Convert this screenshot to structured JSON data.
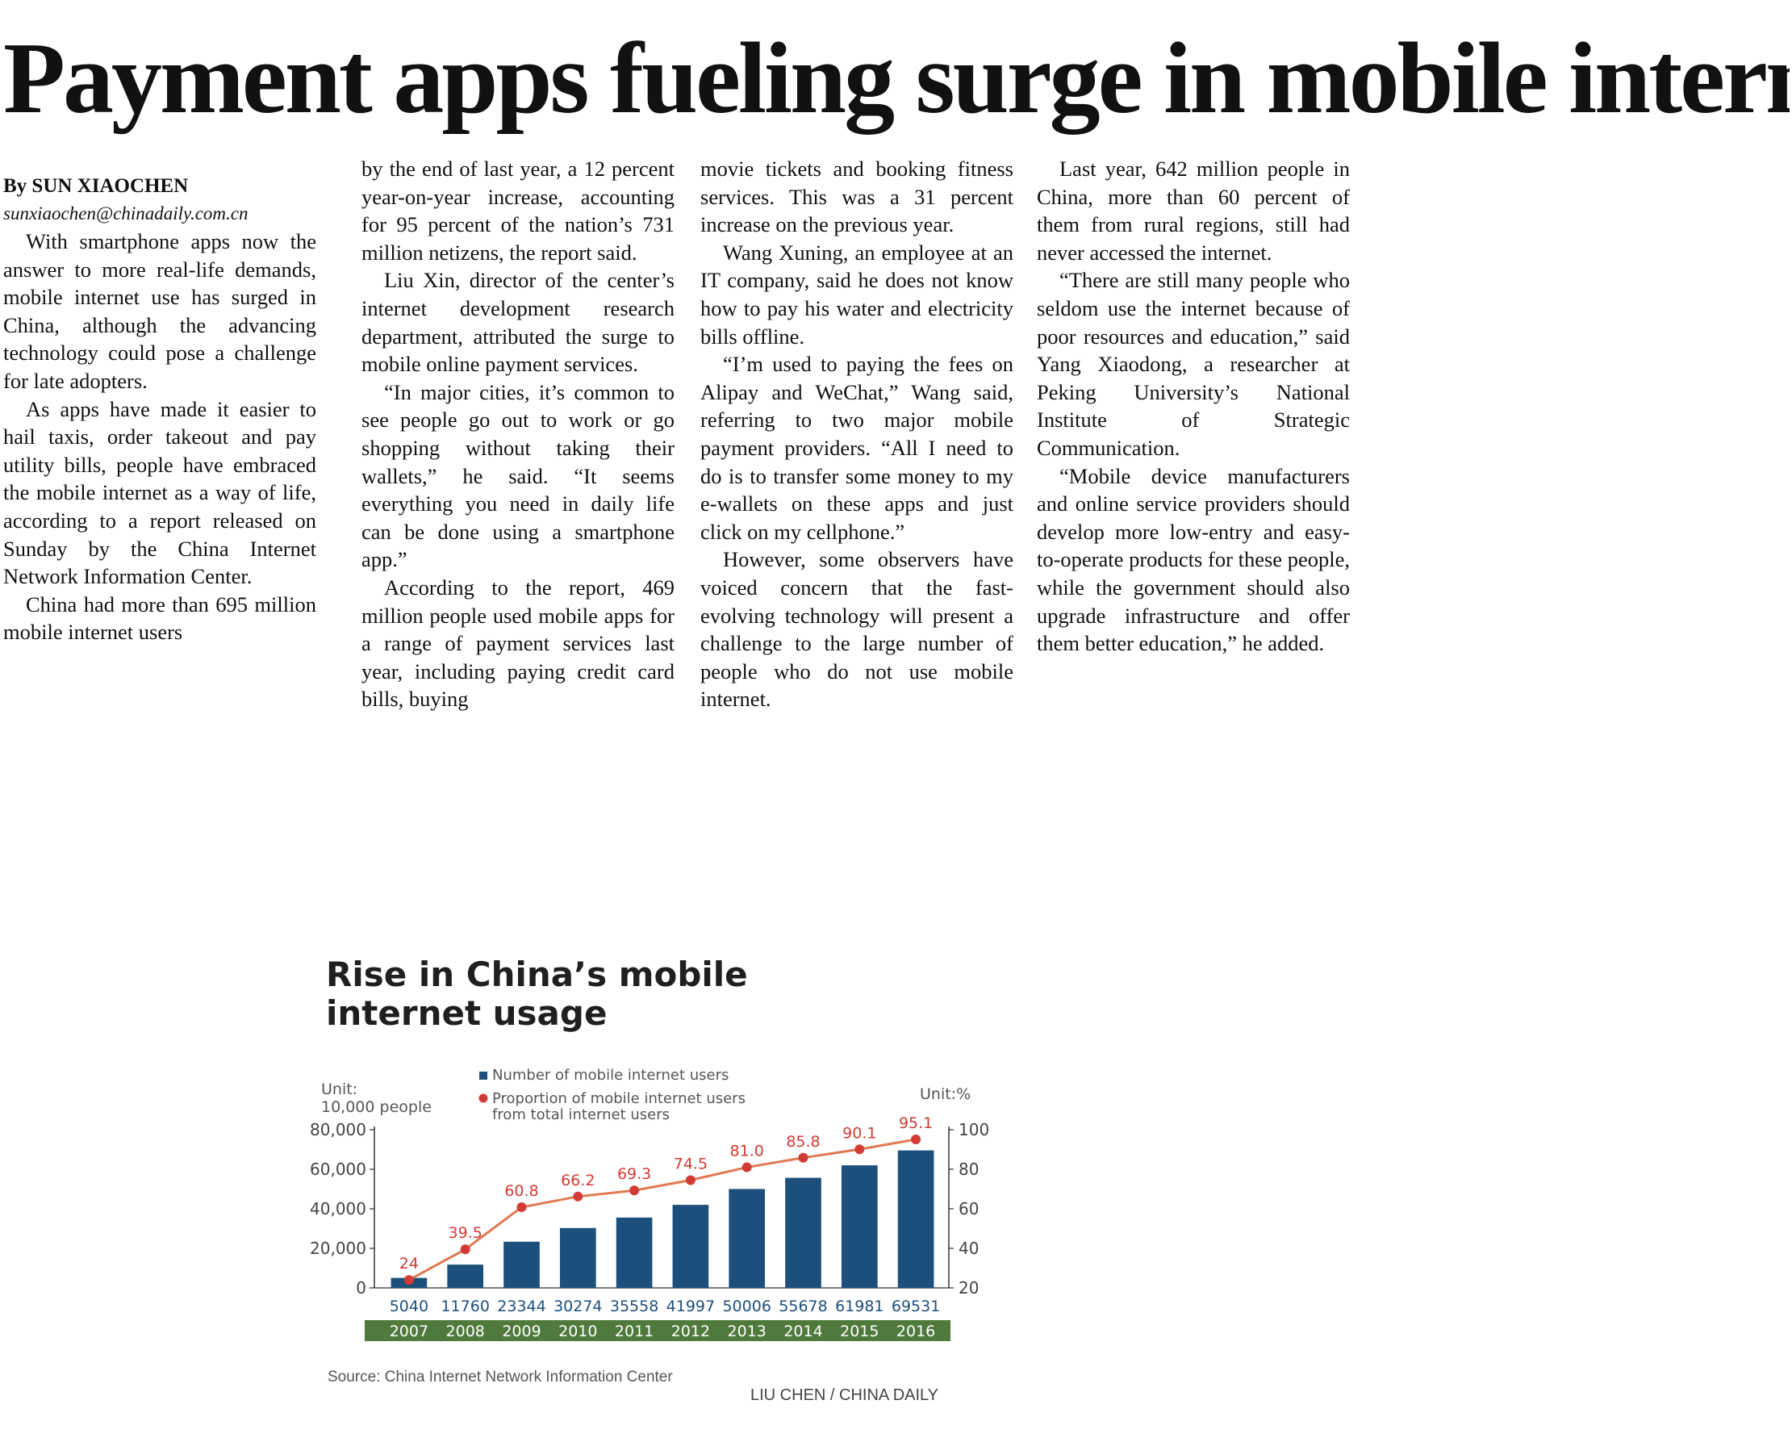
{
  "article": {
    "headline": "Payment apps fueling surge in mobile internet",
    "byline": "By SUN XIAOCHEN",
    "email": "sunxiaochen@chinadaily.com.cn",
    "col1": [
      "With smartphone apps now the answer to more real-life demands, mobile internet use has surged in China, although the advancing technology could pose a challenge for late adopters.",
      "As apps have made it easier to hail taxis, order takeout and pay utility bills, people have embraced the mobile internet as a way of life, according to a report released on Sunday by the China Internet Network Information Center.",
      "China had more than 695 million mobile internet users"
    ],
    "col2": [
      "by the end of last year, a 12 percent year-on-year increase, accounting for 95 percent of the nation’s 731 million netizens, the report said.",
      "Liu Xin, director of the center’s internet development research department, attributed the surge to mobile online payment services.",
      "“In major cities, it’s common to see people go out to work or go shopping without taking their wallets,” he said. “It seems everything you need in daily life can be done using a smartphone app.”",
      "According to the report, 469 million people used mobile apps for a range of payment services last year, including paying credit card bills, buying"
    ],
    "col3": [
      "movie tickets and booking fitness services. This was a 31 percent increase on the previous year.",
      "Wang Xuning, an employee at an IT company, said he does not know how to pay his water and electricity bills offline.",
      "“I’m used to paying the fees on Alipay and WeChat,” Wang said, referring to two major mobile payment providers. “All I need to do is to transfer some money to my e-wallets on these apps and just click on my cellphone.”",
      "However, some observers have voiced concern that the fast-evolving technology will present a challenge to the large number of people who do not use mobile internet."
    ],
    "col4": [
      "Last year, 642 million people in China, more than 60 percent of them from rural regions, still had never accessed the internet.",
      "“There are still many people who seldom use the internet because of poor resources and education,” said Yang Xiaodong, a researcher at Peking University’s National Institute of Strategic Communication.",
      "“Mobile device manufacturers and online service providers should develop more low-entry and easy-to-operate products for these people, while the government should also upgrade infrastructure and offer them better education,” he added."
    ]
  },
  "chart_data": {
    "type": "bar",
    "title": "Rise in China’s mobile internet usage",
    "categories": [
      "2007",
      "2008",
      "2009",
      "2010",
      "2011",
      "2012",
      "2013",
      "2014",
      "2015",
      "2016"
    ],
    "series": [
      {
        "name": "Number of mobile internet users",
        "type": "bar",
        "values": [
          5040,
          11760,
          23344,
          30274,
          35558,
          41997,
          50006,
          55678,
          61981,
          69531
        ],
        "color": "#1d4f7c"
      },
      {
        "name": "Proportion of mobile internet users from total internet users",
        "type": "line",
        "values": [
          24,
          39.5,
          60.8,
          66.2,
          69.3,
          74.5,
          81.0,
          85.8,
          90.1,
          95.1
        ],
        "color": "#d23b35"
      }
    ],
    "left_unit": "Unit: 10,000 people",
    "right_unit": "Unit:%",
    "ylim_left": [
      0,
      80000
    ],
    "yticks_left": [
      "80,000",
      "60,000",
      "40,000",
      "20,000",
      "0"
    ],
    "ylim_right": [
      20,
      100
    ],
    "yticks_right": [
      "100",
      "80",
      "60",
      "40",
      "20"
    ],
    "year_band_color": "#4f7a3c",
    "source": "Source: China Internet Network Information Center",
    "credit": "LIU CHEN / CHINA DAILY"
  }
}
